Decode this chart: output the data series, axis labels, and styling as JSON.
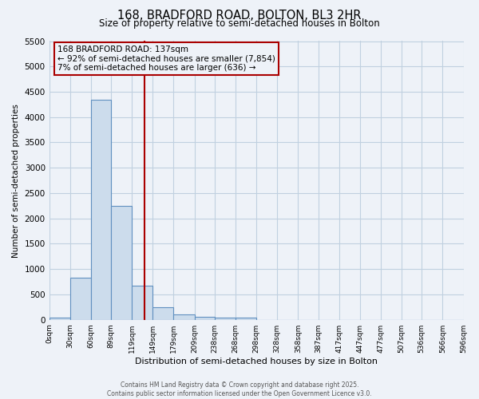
{
  "title_line1": "168, BRADFORD ROAD, BOLTON, BL3 2HR",
  "title_line2": "Size of property relative to semi-detached houses in Bolton",
  "xlabel": "Distribution of semi-detached houses by size in Bolton",
  "ylabel": "Number of semi-detached properties",
  "footer_line1": "Contains HM Land Registry data © Crown copyright and database right 2025.",
  "footer_line2": "Contains public sector information licensed under the Open Government Licence v3.0.",
  "annotation_title": "168 BRADFORD ROAD: 137sqm",
  "annotation_line2": "← 92% of semi-detached houses are smaller (7,854)",
  "annotation_line3": "7% of semi-detached houses are larger (636) →",
  "property_size": 137,
  "bin_edges": [
    0,
    30,
    60,
    89,
    119,
    149,
    179,
    209,
    238,
    268,
    298,
    328,
    358,
    387,
    417,
    447,
    477,
    507,
    536,
    566,
    596
  ],
  "bin_labels": [
    "0sqm",
    "30sqm",
    "60sqm",
    "89sqm",
    "119sqm",
    "149sqm",
    "179sqm",
    "209sqm",
    "238sqm",
    "268sqm",
    "298sqm",
    "328sqm",
    "358sqm",
    "387sqm",
    "417sqm",
    "447sqm",
    "477sqm",
    "507sqm",
    "536sqm",
    "566sqm",
    "596sqm"
  ],
  "bar_heights": [
    50,
    830,
    4350,
    2250,
    670,
    250,
    110,
    60,
    50,
    35,
    0,
    0,
    0,
    0,
    0,
    0,
    0,
    0,
    0,
    0
  ],
  "bar_color": "#ccdcec",
  "bar_edge_color": "#6090c0",
  "red_line_color": "#aa0000",
  "annotation_box_color": "#aa0000",
  "grid_color": "#c0d0e0",
  "bg_color": "#eef2f8",
  "ylim": [
    0,
    5500
  ],
  "yticks": [
    0,
    500,
    1000,
    1500,
    2000,
    2500,
    3000,
    3500,
    4000,
    4500,
    5000,
    5500
  ]
}
